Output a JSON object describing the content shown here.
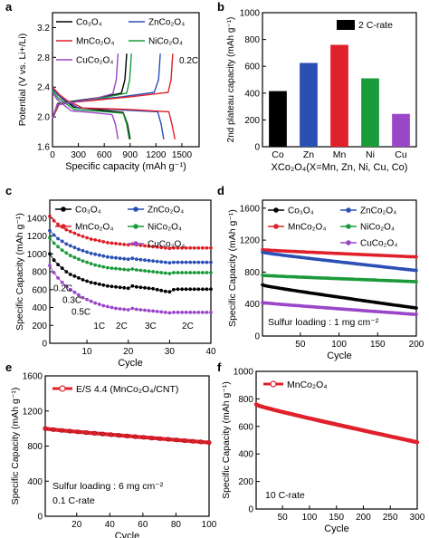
{
  "figure": {
    "panel_labels": [
      "a",
      "b",
      "c",
      "d",
      "e",
      "f"
    ]
  },
  "chart_data": [
    {
      "panel": "a",
      "type": "line",
      "xlabel": "Specific capacity (mAh g⁻¹)",
      "ylabel": "Potential (V vs. Li+/Li)",
      "xlim": [
        0,
        1700
      ],
      "ylim": [
        1.6,
        3.4
      ],
      "xticks": [
        "0",
        "300",
        "600",
        "900",
        "1200",
        "1500"
      ],
      "yticks": [
        "1.6",
        "2.0",
        "2.4",
        "2.8",
        "3.2"
      ],
      "annotation": "0.2C",
      "legend": [
        {
          "name": "Co₃O₄",
          "color": "#000000"
        },
        {
          "name": "ZnCo₂O₄",
          "color": "#2a4fb5"
        },
        {
          "name": "MnCo₂O₄",
          "color": "#e0202a"
        },
        {
          "name": "NiCo₂O₄",
          "color": "#1a9a3a"
        },
        {
          "name": "CuCo₂O₄",
          "color": "#9a46c8"
        }
      ],
      "series": [
        {
          "name": "Co₃O₄",
          "color": "#000000",
          "discharge": [
            [
              0,
              2.4
            ],
            [
              60,
              2.3
            ],
            [
              120,
              2.24
            ],
            [
              250,
              2.13
            ],
            [
              500,
              2.1
            ],
            [
              820,
              2.06
            ],
            [
              870,
              1.9
            ],
            [
              900,
              1.7
            ]
          ],
          "charge": [
            [
              0,
              1.98
            ],
            [
              60,
              2.18
            ],
            [
              300,
              2.22
            ],
            [
              600,
              2.27
            ],
            [
              800,
              2.32
            ],
            [
              840,
              2.5
            ],
            [
              860,
              2.85
            ]
          ]
        },
        {
          "name": "ZnCo₂O₄",
          "color": "#2a4fb5",
          "discharge": [
            [
              0,
              2.38
            ],
            [
              80,
              2.28
            ],
            [
              150,
              2.22
            ],
            [
              300,
              2.12
            ],
            [
              700,
              2.1
            ],
            [
              1220,
              2.07
            ],
            [
              1260,
              1.9
            ],
            [
              1290,
              1.7
            ]
          ],
          "charge": [
            [
              0,
              1.98
            ],
            [
              80,
              2.18
            ],
            [
              400,
              2.22
            ],
            [
              800,
              2.27
            ],
            [
              1180,
              2.33
            ],
            [
              1230,
              2.5
            ],
            [
              1250,
              2.85
            ]
          ]
        },
        {
          "name": "MnCo₂O₄",
          "color": "#e0202a",
          "discharge": [
            [
              0,
              2.4
            ],
            [
              80,
              2.3
            ],
            [
              170,
              2.22
            ],
            [
              350,
              2.12
            ],
            [
              900,
              2.1
            ],
            [
              1350,
              2.07
            ],
            [
              1385,
              1.9
            ],
            [
              1420,
              1.7
            ]
          ],
          "charge": [
            [
              0,
              1.98
            ],
            [
              80,
              2.18
            ],
            [
              450,
              2.22
            ],
            [
              900,
              2.27
            ],
            [
              1340,
              2.33
            ],
            [
              1375,
              2.5
            ],
            [
              1395,
              2.85
            ]
          ]
        },
        {
          "name": "NiCo₂O₄",
          "color": "#1a9a3a",
          "discharge": [
            [
              0,
              2.36
            ],
            [
              60,
              2.26
            ],
            [
              130,
              2.2
            ],
            [
              250,
              2.1
            ],
            [
              500,
              2.08
            ],
            [
              820,
              2.05
            ],
            [
              860,
              1.9
            ],
            [
              890,
              1.7
            ]
          ],
          "charge": [
            [
              0,
              1.98
            ],
            [
              60,
              2.17
            ],
            [
              300,
              2.21
            ],
            [
              600,
              2.26
            ],
            [
              860,
              2.32
            ],
            [
              895,
              2.5
            ],
            [
              915,
              2.85
            ]
          ]
        },
        {
          "name": "CuCo₂O₄",
          "color": "#9a46c8",
          "discharge": [
            [
              0,
              2.33
            ],
            [
              50,
              2.24
            ],
            [
              110,
              2.18
            ],
            [
              220,
              2.08
            ],
            [
              450,
              2.06
            ],
            [
              690,
              2.03
            ],
            [
              730,
              1.9
            ],
            [
              760,
              1.7
            ]
          ],
          "charge": [
            [
              0,
              1.98
            ],
            [
              50,
              2.16
            ],
            [
              250,
              2.2
            ],
            [
              500,
              2.25
            ],
            [
              700,
              2.31
            ],
            [
              740,
              2.5
            ],
            [
              760,
              2.85
            ]
          ]
        }
      ]
    },
    {
      "panel": "b",
      "type": "bar",
      "xlabel": "XCo₂O₄(X=Mn, Zn, Ni, Cu, Co)",
      "ylabel": "2nd plateau capacity (mAh g⁻¹)",
      "ylim": [
        0,
        1000
      ],
      "yticks": [
        "0",
        "200",
        "400",
        "600",
        "800",
        "1000"
      ],
      "legend": [
        {
          "name": "2 C-rate",
          "color": "#000000"
        }
      ],
      "categories": [
        "Co",
        "Zn",
        "Mn",
        "Ni",
        "Cu"
      ],
      "values": [
        415,
        625,
        760,
        510,
        245
      ],
      "colors": [
        "#000000",
        "#2a4fb5",
        "#e0202a",
        "#1a9a3a",
        "#9a46c8"
      ]
    },
    {
      "panel": "c",
      "type": "scatter",
      "xlabel": "Cycle",
      "ylabel": "Specific Capacity (mAh g⁻¹)",
      "xlim": [
        1,
        40
      ],
      "ylim": [
        0,
        1600
      ],
      "xticks": [
        "10",
        "20",
        "30",
        "40"
      ],
      "yticks": [
        "0",
        "200",
        "400",
        "600",
        "800",
        "1000",
        "1200",
        "1400"
      ],
      "annotations": [
        "0.2C",
        "0.3C",
        "0.5C",
        "1C",
        "2C",
        "3C",
        "2C"
      ],
      "legend": [
        {
          "name": "Co₃O₄",
          "color": "#000000"
        },
        {
          "name": "ZnCo₂O₄",
          "color": "#2a4fb5"
        },
        {
          "name": "MnCo₂O₄",
          "color": "#e0202a"
        },
        {
          "name": "NiCo₂O₄",
          "color": "#1a9a3a"
        },
        {
          "name": "CuCo₂O₄",
          "color": "#9a46c8"
        }
      ],
      "x": [
        1,
        2,
        3,
        4,
        5,
        6,
        7,
        8,
        9,
        10,
        11,
        12,
        13,
        14,
        15,
        16,
        17,
        18,
        19,
        20,
        21,
        22,
        23,
        24,
        25,
        26,
        27,
        28,
        29,
        30,
        31,
        32,
        33,
        34,
        35,
        36,
        37,
        38,
        39,
        40
      ],
      "series": [
        {
          "name": "MnCo₂O₄",
          "color": "#e0202a",
          "values": [
            1420,
            1370,
            1330,
            1300,
            1270,
            1250,
            1230,
            1210,
            1195,
            1180,
            1165,
            1155,
            1145,
            1135,
            1125,
            1120,
            1115,
            1110,
            1105,
            1100,
            1110,
            1100,
            1095,
            1090,
            1085,
            1080,
            1075,
            1070,
            1065,
            1060,
            1065,
            1065,
            1065,
            1065,
            1065,
            1065,
            1065,
            1065,
            1065,
            1065
          ]
        },
        {
          "name": "ZnCo₂O₄",
          "color": "#2a4fb5",
          "values": [
            1260,
            1210,
            1170,
            1140,
            1110,
            1090,
            1070,
            1050,
            1035,
            1020,
            1005,
            995,
            985,
            975,
            965,
            960,
            955,
            950,
            945,
            940,
            950,
            940,
            935,
            930,
            925,
            920,
            915,
            910,
            905,
            900,
            905,
            905,
            905,
            905,
            905,
            905,
            905,
            905,
            905,
            905
          ]
        },
        {
          "name": "NiCo₂O₄",
          "color": "#1a9a3a",
          "values": [
            1180,
            1120,
            1080,
            1040,
            1010,
            980,
            960,
            940,
            920,
            905,
            890,
            875,
            865,
            855,
            845,
            840,
            835,
            830,
            825,
            820,
            830,
            820,
            815,
            810,
            805,
            800,
            795,
            790,
            785,
            780,
            790,
            790,
            790,
            790,
            790,
            790,
            790,
            790,
            790,
            790
          ]
        },
        {
          "name": "Co₃O₄",
          "color": "#000000",
          "values": [
            1000,
            930,
            880,
            840,
            800,
            770,
            750,
            730,
            710,
            695,
            680,
            670,
            660,
            650,
            640,
            635,
            630,
            625,
            620,
            615,
            640,
            630,
            625,
            620,
            615,
            610,
            600,
            590,
            580,
            575,
            600,
            605,
            605,
            605,
            605,
            605,
            605,
            605,
            605,
            605
          ]
        },
        {
          "name": "CuCo₂O₄",
          "color": "#9a46c8",
          "values": [
            870,
            790,
            730,
            680,
            640,
            600,
            570,
            540,
            510,
            490,
            470,
            450,
            435,
            420,
            410,
            400,
            390,
            385,
            380,
            375,
            390,
            380,
            375,
            370,
            365,
            360,
            355,
            350,
            345,
            340,
            345,
            345,
            345,
            345,
            345,
            345,
            345,
            345,
            345,
            345
          ]
        }
      ]
    },
    {
      "panel": "d",
      "type": "line",
      "xlabel": "Cycle",
      "ylabel": "Specific Capacity (mAh g⁻¹)",
      "xlim": [
        1,
        200
      ],
      "ylim": [
        0,
        1700
      ],
      "xticks": [
        "50",
        "100",
        "150",
        "200"
      ],
      "yticks": [
        "0",
        "400",
        "800",
        "1200",
        "1600"
      ],
      "annotation": "Sulfur loading : 1 mg cm⁻²",
      "legend": [
        {
          "name": "Co₃O₄",
          "color": "#000000"
        },
        {
          "name": "ZnCo₂O₄",
          "color": "#2a4fb5"
        },
        {
          "name": "MnCo₂O₄",
          "color": "#e0202a"
        },
        {
          "name": "NiCo₂O₄",
          "color": "#1a9a3a"
        },
        {
          "name": "CuCo₂O₄",
          "color": "#9a46c8"
        }
      ],
      "series": [
        {
          "name": "MnCo₂O₄",
          "color": "#e0202a",
          "start": 1080,
          "end": 990
        },
        {
          "name": "ZnCo₂O₄",
          "color": "#2a4fb5",
          "start": 1050,
          "end": 820
        },
        {
          "name": "NiCo₂O₄",
          "color": "#1a9a3a",
          "start": 760,
          "end": 680
        },
        {
          "name": "Co₃O₄",
          "color": "#000000",
          "start": 640,
          "end": 350
        },
        {
          "name": "CuCo₂O₄",
          "color": "#9a46c8",
          "start": 420,
          "end": 270
        }
      ]
    },
    {
      "panel": "e",
      "type": "line",
      "xlabel": "Cycle",
      "ylabel": "Specific Capacity (mAh g⁻¹)",
      "xlim": [
        1,
        100
      ],
      "ylim": [
        0,
        1600
      ],
      "xticks": [
        "20",
        "40",
        "60",
        "80",
        "100"
      ],
      "yticks": [
        "0",
        "400",
        "800",
        "1200",
        "1600"
      ],
      "annotations": [
        "Sulfur loading : 6 mg cm⁻²",
        "0.1 C-rate"
      ],
      "legend": [
        {
          "name": "E/S 4.4 (MnCo₂O₄/CNT)",
          "color": "#e0202a"
        }
      ],
      "series": [
        {
          "name": "E/S 4.4 (MnCo₂O₄/CNT)",
          "color": "#e0202a",
          "start": 1000,
          "end": 840
        }
      ]
    },
    {
      "panel": "f",
      "type": "line",
      "xlabel": "Cycle",
      "ylabel": "Specific Capacity (mAh g⁻¹)",
      "xlim": [
        1,
        300
      ],
      "ylim": [
        0,
        1000
      ],
      "xticks": [
        "50",
        "100",
        "150",
        "200",
        "250",
        "300"
      ],
      "yticks": [
        "0",
        "200",
        "400",
        "600",
        "800",
        "1000"
      ],
      "annotation": "10 C-rate",
      "legend": [
        {
          "name": "MnCo₂O₄",
          "color": "#e0202a"
        }
      ],
      "series": [
        {
          "name": "MnCo₂O₄",
          "color": "#e0202a",
          "start": 760,
          "end": 485
        }
      ]
    }
  ]
}
